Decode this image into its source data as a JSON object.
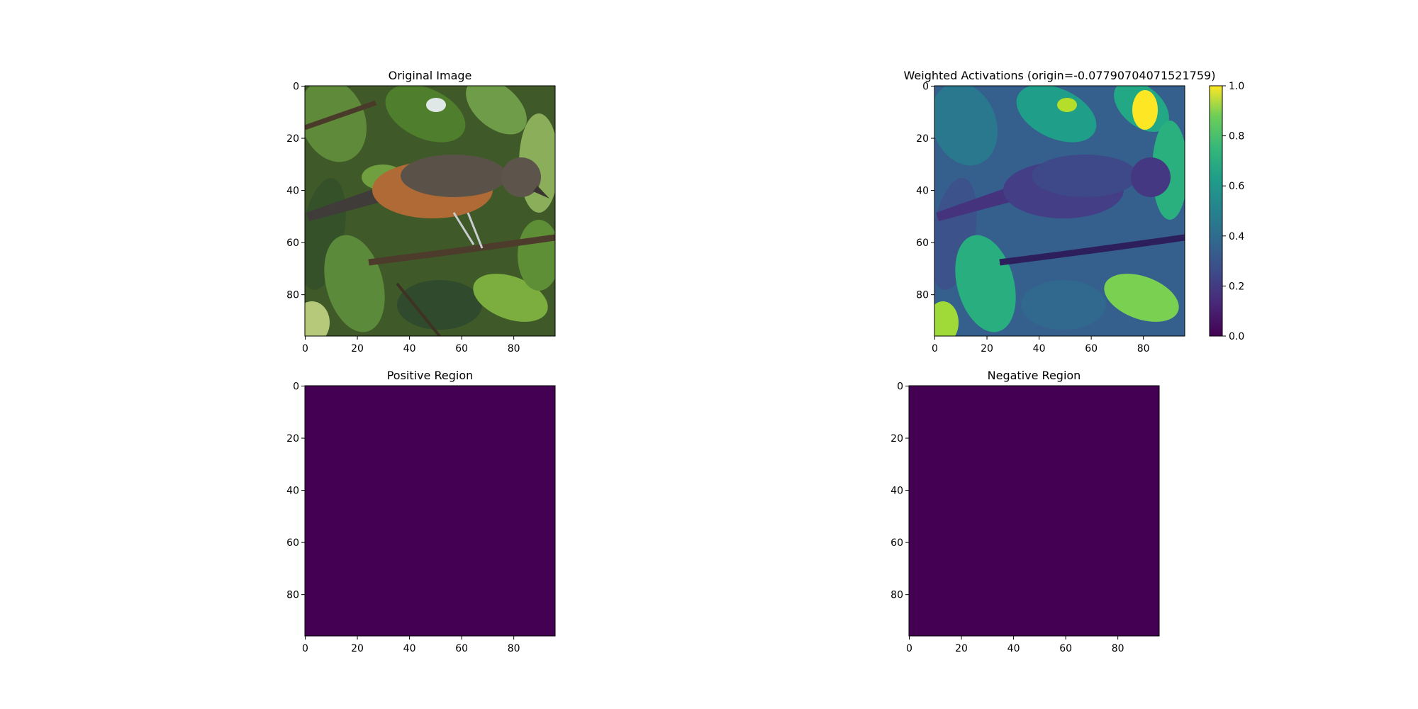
{
  "chart_data": [
    {
      "type": "image",
      "title": "Original Image",
      "xlim": [
        0,
        96
      ],
      "ylim": [
        96,
        0
      ],
      "xticks": [
        0,
        20,
        40,
        60,
        80
      ],
      "yticks": [
        0,
        20,
        40,
        60,
        80
      ],
      "content": "photo of a bird with grey head and orange-brown breast perched on a branch among green leaves"
    },
    {
      "type": "heatmap",
      "title": "Weighted Activations (origin=-0.07790704071521759)",
      "colormap": "viridis",
      "xlim": [
        0,
        96
      ],
      "ylim": [
        96,
        0
      ],
      "xticks": [
        0,
        20,
        40,
        60,
        80
      ],
      "yticks": [
        0,
        20,
        40,
        60,
        80
      ],
      "colorbar": {
        "range": [
          0.0,
          1.0
        ],
        "ticks": [
          "0.0",
          "0.2",
          "0.4",
          "0.6",
          "0.8",
          "1.0"
        ]
      }
    },
    {
      "type": "heatmap",
      "title": "Positive Region",
      "colormap": "viridis",
      "uniform_value": 0.0,
      "xlim": [
        0,
        96
      ],
      "ylim": [
        96,
        0
      ],
      "xticks": [
        0,
        20,
        40,
        60,
        80
      ],
      "yticks": [
        0,
        20,
        40,
        60,
        80
      ]
    },
    {
      "type": "heatmap",
      "title": "Negative Region",
      "colormap": "viridis",
      "uniform_value": 0.0,
      "xlim": [
        0,
        96
      ],
      "ylim": [
        96,
        0
      ],
      "xticks": [
        0,
        20,
        40,
        60,
        80
      ],
      "yticks": [
        0,
        20,
        40,
        60,
        80
      ]
    }
  ],
  "colors": {
    "viridis_low": "#440154",
    "viridis_high": "#fde725",
    "leaf_green": "#4e7a2a",
    "bird_orange": "#b06a35",
    "bird_grey": "#5a5248"
  }
}
